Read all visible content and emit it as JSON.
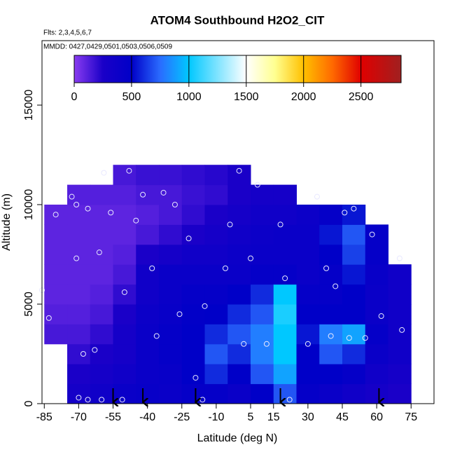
{
  "chart_data": {
    "type": "heatmap",
    "title": "ATOM4 Southbound H2O2_CIT",
    "subtitle": "Flts: 2,3,4,5,6,7",
    "annotation": "MMDD: 0427,0429,0501,0503,0506,0509",
    "x_label": "Latitude (deg N)",
    "y_label": "Altitude (m)",
    "xlim": [
      -86,
      85
    ],
    "ylim": [
      0,
      18240
    ],
    "xticks": [
      -85,
      -70,
      -55,
      -40,
      -25,
      -10,
      5,
      15,
      30,
      45,
      60,
      75
    ],
    "yticks": [
      0,
      5000,
      10000,
      15000
    ],
    "x_edges": [
      -85,
      -75,
      -65,
      -55,
      -45,
      -35,
      -25,
      -15,
      -5,
      5,
      15,
      25,
      35,
      45,
      55,
      65,
      75
    ],
    "y_edges": [
      0,
      1000,
      2000,
      3000,
      4000,
      5000,
      6000,
      7000,
      8000,
      9000,
      10000,
      11000,
      12000
    ],
    "z": [
      [
        null,
        null,
        null,
        150,
        120,
        100,
        100,
        100,
        100,
        100,
        null,
        null
      ],
      [
        300,
        250,
        200,
        150,
        120,
        100,
        100,
        100,
        100,
        100,
        120,
        null
      ],
      [
        350,
        300,
        250,
        200,
        150,
        120,
        100,
        100,
        100,
        100,
        120,
        null
      ],
      [
        400,
        350,
        300,
        300,
        250,
        200,
        150,
        120,
        100,
        100,
        120,
        150
      ],
      [
        420,
        400,
        400,
        400,
        380,
        350,
        350,
        250,
        150,
        120,
        150,
        180
      ],
      [
        400,
        420,
        450,
        450,
        420,
        400,
        400,
        300,
        200,
        150,
        150,
        180
      ],
      [
        450,
        500,
        500,
        500,
        480,
        450,
        400,
        350,
        250,
        200,
        180,
        200
      ],
      [
        450,
        600,
        700,
        600,
        500,
        450,
        400,
        350,
        300,
        250,
        200,
        220
      ],
      [
        400,
        500,
        600,
        700,
        600,
        500,
        400,
        380,
        350,
        300,
        250,
        250
      ],
      [
        500,
        700,
        800,
        800,
        700,
        600,
        450,
        400,
        380,
        350,
        300,
        null
      ],
      [
        700,
        900,
        1000,
        1000,
        1050,
        1000,
        450,
        400,
        400,
        350,
        300,
        null
      ],
      [
        450,
        500,
        500,
        550,
        500,
        450,
        400,
        400,
        400,
        380,
        null,
        null
      ],
      [
        400,
        500,
        700,
        800,
        500,
        450,
        450,
        500,
        550,
        450,
        null,
        null
      ],
      [
        350,
        450,
        600,
        900,
        500,
        500,
        550,
        650,
        700,
        550,
        null,
        null
      ],
      [
        300,
        350,
        400,
        450,
        400,
        400,
        420,
        450,
        450,
        null,
        null,
        null
      ],
      [
        250,
        300,
        350,
        350,
        350,
        350,
        350,
        null,
        null,
        null,
        null,
        null
      ]
    ],
    "zlim": [
      0,
      2850
    ],
    "zticks": [
      0,
      500,
      1000,
      1500,
      2000,
      2500
    ],
    "colormap": [
      {
        "value": 0,
        "color": "#8a3cf0"
      },
      {
        "value": 250,
        "color": "#1a00c8"
      },
      {
        "value": 500,
        "color": "#0000c8"
      },
      {
        "value": 750,
        "color": "#2a6cff"
      },
      {
        "value": 1000,
        "color": "#00c8ff"
      },
      {
        "value": 1500,
        "color": "#ffffff"
      },
      {
        "value": 1750,
        "color": "#ffff90"
      },
      {
        "value": 2000,
        "color": "#ffc000"
      },
      {
        "value": 2250,
        "color": "#ff6a00"
      },
      {
        "value": 2500,
        "color": "#e00000"
      },
      {
        "value": 2850,
        "color": "#a02020"
      }
    ],
    "points": {
      "color": "#e8e8ff",
      "x": [
        -86,
        -80,
        -83,
        -73,
        -71,
        -71,
        -68,
        -66,
        -63,
        -61,
        -59,
        -56,
        -50,
        -48,
        -45,
        -42,
        -38,
        -33,
        -28,
        -26,
        -22,
        -19,
        -15,
        -6,
        -4,
        0,
        2,
        5,
        8,
        12,
        18,
        20,
        30,
        34,
        38,
        42,
        46,
        50,
        55,
        58,
        62,
        70,
        71,
        -70,
        -66,
        -60,
        -51,
        -36,
        -16,
        22,
        40,
        48
      ],
      "y": [
        5700,
        9500,
        4300,
        10400,
        10000,
        7300,
        2500,
        9800,
        2700,
        7600,
        11600,
        9600,
        5600,
        11700,
        9200,
        10500,
        6800,
        10600,
        10000,
        4500,
        8300,
        1300,
        4900,
        6800,
        9000,
        11700,
        3000,
        7300,
        11000,
        3000,
        9000,
        6300,
        3000,
        10400,
        6800,
        5900,
        9600,
        9800,
        3300,
        8500,
        4400,
        7300,
        3700,
        300,
        200,
        200,
        200,
        3400,
        200,
        200,
        3400,
        3300
      ]
    },
    "arrows": [
      -55,
      -42,
      -19,
      18,
      61
    ]
  }
}
